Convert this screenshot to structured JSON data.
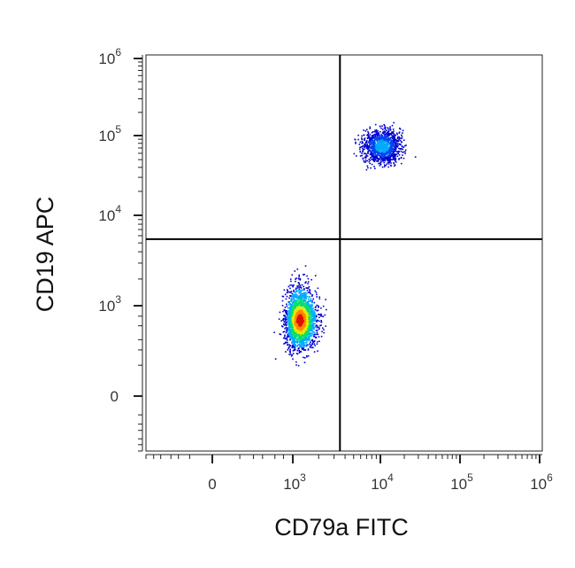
{
  "chart_data": {
    "type": "scatter",
    "plot_style": "flow cytometry density dot plot (pseudocolor)",
    "xlabel": "CD79a FITC",
    "ylabel": "CD19 APC",
    "x_scale": "biexponential (logicle)",
    "y_scale": "biexponential (logicle)",
    "x_ticks": [
      {
        "base": "0",
        "exp": "",
        "value": 0
      },
      {
        "base": "10",
        "exp": "3",
        "value": 1000
      },
      {
        "base": "10",
        "exp": "4",
        "value": 10000
      },
      {
        "base": "10",
        "exp": "5",
        "value": 100000
      },
      {
        "base": "10",
        "exp": "6",
        "value": 1000000
      }
    ],
    "y_ticks": [
      {
        "base": "0",
        "exp": "",
        "value": 0
      },
      {
        "base": "10",
        "exp": "3",
        "value": 1000
      },
      {
        "base": "10",
        "exp": "4",
        "value": 10000
      },
      {
        "base": "10",
        "exp": "5",
        "value": 100000
      },
      {
        "base": "10",
        "exp": "6",
        "value": 1000000
      }
    ],
    "quadrant_gate": {
      "x": 3500,
      "y": 5500
    },
    "populations": [
      {
        "cx": 1200,
        "cy": 620,
        "n": 2600,
        "density": "high"
      },
      {
        "cx": 10500,
        "cy": 75000,
        "n": 1300,
        "density": "medium"
      }
    ],
    "color_scale": [
      "#0000cc",
      "#00aaff",
      "#00e070",
      "#e8e800",
      "#ff8800",
      "#e01000"
    ],
    "grid": false,
    "legend": "none"
  }
}
